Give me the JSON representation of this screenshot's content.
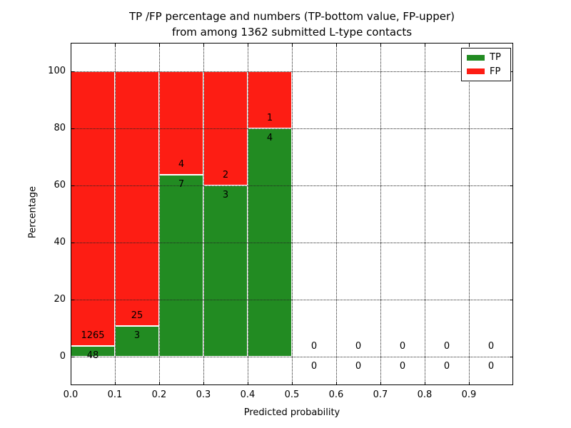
{
  "chart_data": {
    "type": "bar",
    "stacked": true,
    "title_line1": "TP /FP percentage and numbers (TP-bottom value, FP-upper)",
    "title_line2": "from among 1362 submitted L-type contacts",
    "xlabel": "Predicted probability",
    "ylabel": "Percentage",
    "xlim": [
      0.0,
      1.0
    ],
    "ylim": [
      -10,
      110
    ],
    "grid": "dotted, both axes, drawn above bars",
    "bin_width": 0.1,
    "categories": [
      "0.0-0.1",
      "0.1-0.2",
      "0.2-0.3",
      "0.3-0.4",
      "0.4-0.5",
      "0.5-0.6",
      "0.6-0.7",
      "0.7-0.8",
      "0.8-0.9",
      "0.9-1.0"
    ],
    "series": [
      {
        "name": "TP",
        "color": "#228b22",
        "counts": [
          48,
          3,
          7,
          3,
          4,
          0,
          0,
          0,
          0,
          0
        ]
      },
      {
        "name": "FP",
        "color": "#fd1d14",
        "counts": [
          1265,
          25,
          4,
          2,
          1,
          0,
          0,
          0,
          0,
          0
        ]
      }
    ],
    "tp_percent_of_bin": [
      3.7,
      10.7,
      63.6,
      60.0,
      80.0,
      0,
      0,
      0,
      0,
      0
    ],
    "bar_edge_color": "#ffffff",
    "xtick_labels": [
      "0.0",
      "0.1",
      "0.2",
      "0.3",
      "0.4",
      "0.5",
      "0.6",
      "0.7",
      "0.8",
      "0.9"
    ],
    "ytick_values": [
      0,
      20,
      40,
      60,
      80,
      100
    ],
    "ytick_labels": [
      "0",
      "20",
      "40",
      "60",
      "80",
      "100"
    ],
    "legend": {
      "position": "upper-right",
      "entries": [
        {
          "label": "TP",
          "color": "#228b22"
        },
        {
          "label": "FP",
          "color": "#fd1d14"
        }
      ]
    }
  }
}
